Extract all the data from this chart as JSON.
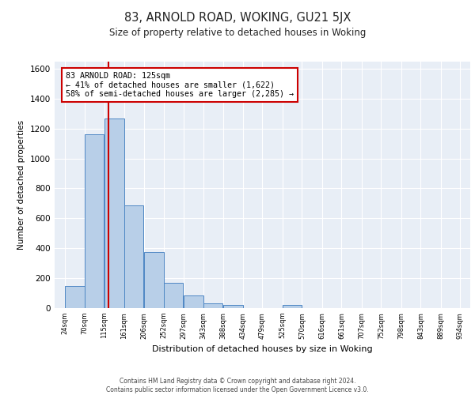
{
  "title1": "83, ARNOLD ROAD, WOKING, GU21 5JX",
  "title2": "Size of property relative to detached houses in Woking",
  "xlabel": "Distribution of detached houses by size in Woking",
  "ylabel": "Number of detached properties",
  "bar_edges": [
    24,
    70,
    115,
    161,
    206,
    252,
    297,
    343,
    388,
    434,
    479,
    525,
    570,
    616,
    661,
    707,
    752,
    798,
    843,
    889,
    934
  ],
  "bar_heights": [
    148,
    1160,
    1265,
    685,
    375,
    170,
    85,
    30,
    20,
    0,
    0,
    20,
    0,
    0,
    0,
    0,
    0,
    0,
    0,
    0,
    0
  ],
  "bar_color": "#b8cfe8",
  "bar_edge_color": "#4e87c4",
  "red_line_x": 125,
  "annotation_text": "83 ARNOLD ROAD: 125sqm\n← 41% of detached houses are smaller (1,622)\n58% of semi-detached houses are larger (2,285) →",
  "annotation_box_color": "#ffffff",
  "annotation_border_color": "#cc0000",
  "ylim": [
    0,
    1650
  ],
  "yticks": [
    0,
    200,
    400,
    600,
    800,
    1000,
    1200,
    1400,
    1600
  ],
  "background_color": "#e8eef6",
  "grid_color": "#ffffff",
  "footer1": "Contains HM Land Registry data © Crown copyright and database right 2024.",
  "footer2": "Contains public sector information licensed under the Open Government Licence v3.0."
}
